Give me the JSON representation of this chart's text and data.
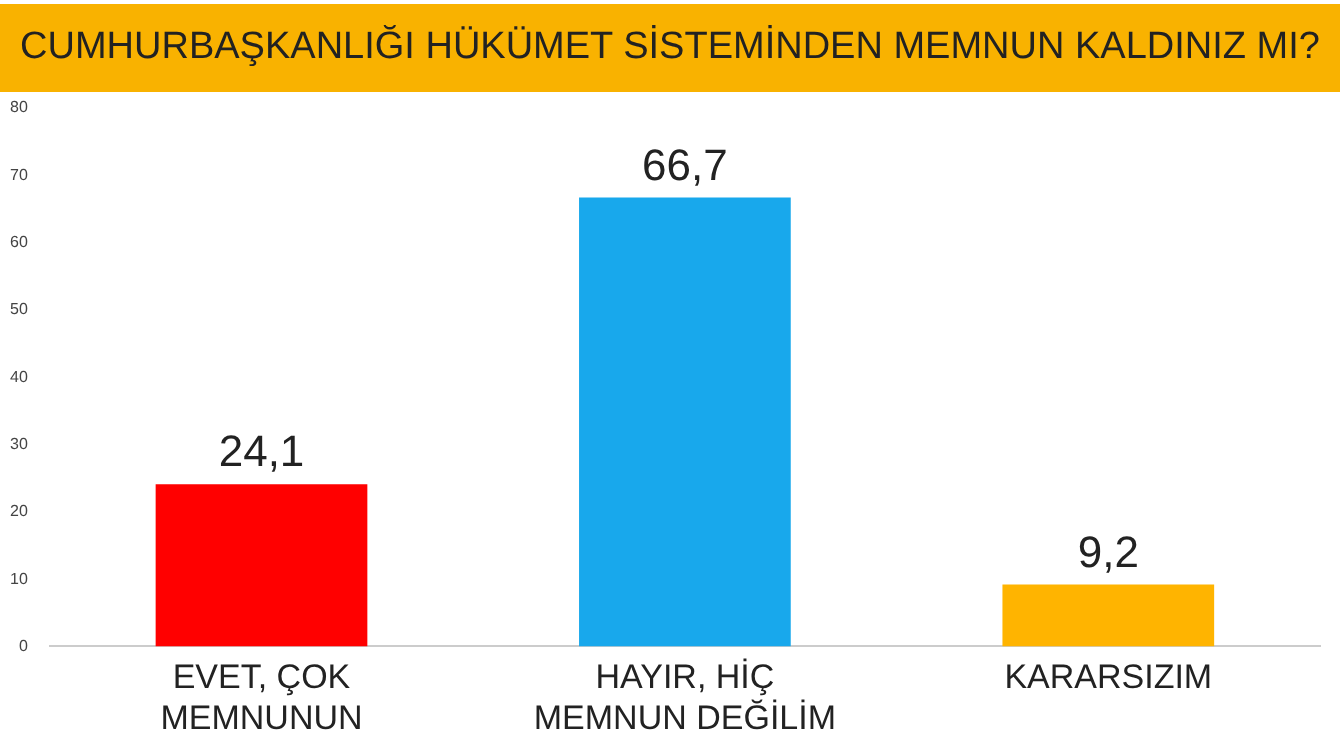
{
  "chart_data": {
    "type": "bar",
    "title": "CUMHURBAŞKANLIĞI HÜKÜMET SİSTEMİNDEN MEMNUN KALDINIZ MI?",
    "categories": [
      "EVET, ÇOK MEMNUNUN",
      "HAYIR, HİÇ MEMNUN DEĞİLİM",
      "KARARSIZIM"
    ],
    "values": [
      24.1,
      66.7,
      9.2
    ],
    "colors": [
      "#ff0000",
      "#18a8ec",
      "#ffb400"
    ],
    "value_labels": [
      "24,1",
      "66,7",
      "9,2"
    ],
    "ylim": [
      0,
      80
    ],
    "yticks": [
      0,
      10,
      20,
      30,
      40,
      50,
      60,
      70,
      80
    ],
    "grid": false,
    "legend": false
  }
}
